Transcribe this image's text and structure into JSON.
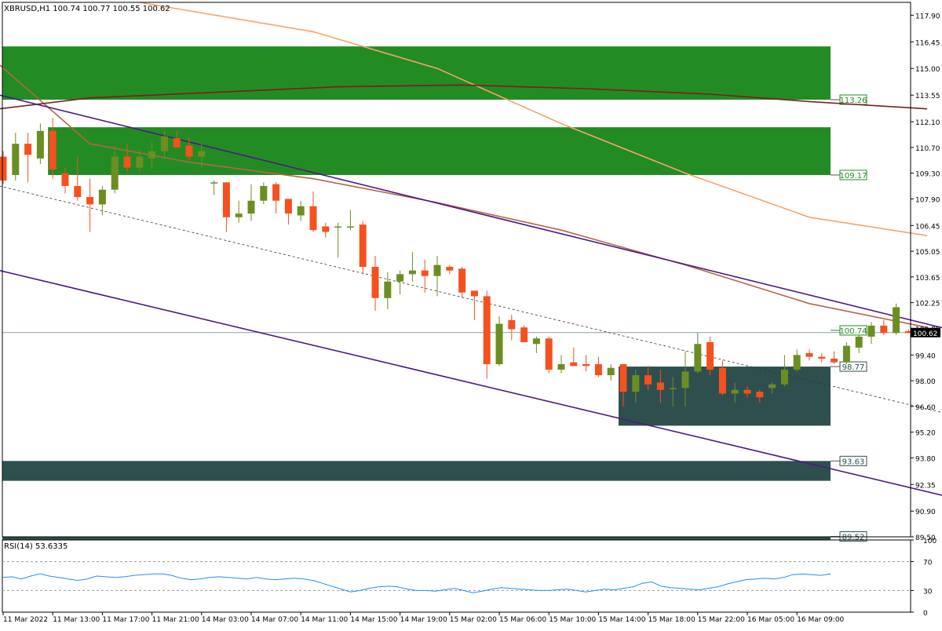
{
  "header": {
    "symbol_info": "XBRUSD,H1  100.74 100.77 100.55 100.62"
  },
  "rsi_header": {
    "label": "RSI(14) 53.6335"
  },
  "colors": {
    "bull": "#6b8e23",
    "bear": "#f4511e",
    "zone_green": "#238b23",
    "zone_dark": "#2f4f4f",
    "ma_fast": "#b5654a",
    "ma_mid": "#f4a46c",
    "ma_slow": "#7a1f1f",
    "channel": "#4b1b82",
    "rsi": "#1e90ff"
  },
  "chart_data": [
    {
      "type": "candlestick",
      "title": "XBRUSD,H1",
      "ylim": [
        89.5,
        118.6
      ],
      "y_ticks": [
        "117.90",
        "116.45",
        "115.00",
        "113.55",
        "112.10",
        "110.70",
        "109.30",
        "107.90",
        "106.45",
        "105.05",
        "103.65",
        "102.25",
        "100.85",
        "99.40",
        "98.00",
        "96.60",
        "95.20",
        "93.80",
        "92.35",
        "90.90",
        "89.50"
      ],
      "x_ticks": [
        "11 Mar 2022",
        "11 Mar 13:00",
        "11 Mar 17:00",
        "11 Mar 21:00",
        "14 Mar 03:00",
        "14 Mar 07:00",
        "14 Mar 11:00",
        "14 Mar 15:00",
        "14 Mar 19:00",
        "15 Mar 02:00",
        "15 Mar 06:00",
        "15 Mar 10:00",
        "15 Mar 14:00",
        "15 Mar 18:00",
        "15 Mar 22:00",
        "16 Mar 05:00",
        "16 Mar 09:00"
      ],
      "current_price": "100.62",
      "candles": [
        [
          110.2,
          110.5,
          108.7,
          108.9
        ],
        [
          109.2,
          111.5,
          108.9,
          110.9
        ],
        [
          110.9,
          111.5,
          108.8,
          110.3
        ],
        [
          110.1,
          112.0,
          109.8,
          111.6
        ],
        [
          111.6,
          112.3,
          109.0,
          109.5
        ],
        [
          109.3,
          109.6,
          108.2,
          108.6
        ],
        [
          108.6,
          110.2,
          107.8,
          108.0
        ],
        [
          108.0,
          109.0,
          106.1,
          107.6
        ],
        [
          107.6,
          108.6,
          107.0,
          108.4
        ],
        [
          108.4,
          110.8,
          108.2,
          110.2
        ],
        [
          110.2,
          110.9,
          109.4,
          109.6
        ],
        [
          109.6,
          110.6,
          109.3,
          110.2
        ],
        [
          110.1,
          111.0,
          109.5,
          110.5
        ],
        [
          110.5,
          111.6,
          110.1,
          111.3
        ],
        [
          111.2,
          111.6,
          110.7,
          110.7
        ],
        [
          110.8,
          111.2,
          110.0,
          110.2
        ],
        [
          110.2,
          110.9,
          109.6,
          110.5
        ],
        [
          108.8,
          108.9,
          108.1,
          108.8
        ],
        [
          108.8,
          108.8,
          106.1,
          106.9
        ],
        [
          106.9,
          107.8,
          106.6,
          107.1
        ],
        [
          107.1,
          108.7,
          106.7,
          107.8
        ],
        [
          107.8,
          108.8,
          107.6,
          108.6
        ],
        [
          108.7,
          108.8,
          107.1,
          107.8
        ],
        [
          107.9,
          107.9,
          106.5,
          107.1
        ],
        [
          107.0,
          107.8,
          106.7,
          107.5
        ],
        [
          107.5,
          108.3,
          106.1,
          106.2
        ],
        [
          106.4,
          106.6,
          105.8,
          106.1
        ],
        [
          106.4,
          106.6,
          104.7,
          106.4
        ],
        [
          106.4,
          107.3,
          106.2,
          106.4
        ],
        [
          106.5,
          106.7,
          103.8,
          104.2
        ],
        [
          104.2,
          104.8,
          101.8,
          102.5
        ],
        [
          102.5,
          103.9,
          101.9,
          103.4
        ],
        [
          103.4,
          104.0,
          102.7,
          103.8
        ],
        [
          103.8,
          105.0,
          103.4,
          104.0
        ],
        [
          104.0,
          104.6,
          102.8,
          103.7
        ],
        [
          103.7,
          104.8,
          102.6,
          104.3
        ],
        [
          104.2,
          104.3,
          103.8,
          104.0
        ],
        [
          104.1,
          104.2,
          102.5,
          102.8
        ],
        [
          102.9,
          102.8,
          101.3,
          102.6
        ],
        [
          102.6,
          102.9,
          98.1,
          98.9
        ],
        [
          98.9,
          101.5,
          98.8,
          101.1
        ],
        [
          101.3,
          101.6,
          100.2,
          100.8
        ],
        [
          100.9,
          101.0,
          100.1,
          100.1
        ],
        [
          100.0,
          100.4,
          99.5,
          100.3
        ],
        [
          100.3,
          100.4,
          98.4,
          98.6
        ],
        [
          98.6,
          99.4,
          98.4,
          98.9
        ],
        [
          99.0,
          99.8,
          98.8,
          98.8
        ],
        [
          98.9,
          99.4,
          98.5,
          98.8
        ],
        [
          98.9,
          99.3,
          98.2,
          98.3
        ],
        [
          98.3,
          98.9,
          98.0,
          98.7
        ],
        [
          98.9,
          98.9,
          96.6,
          97.4
        ],
        [
          97.4,
          98.6,
          96.8,
          98.3
        ],
        [
          98.3,
          98.8,
          97.5,
          97.8
        ],
        [
          97.9,
          98.6,
          96.8,
          97.5
        ],
        [
          97.6,
          98.2,
          96.6,
          97.6
        ],
        [
          97.6,
          99.6,
          96.6,
          98.5
        ],
        [
          98.5,
          100.6,
          98.4,
          100.0
        ],
        [
          100.1,
          100.4,
          98.3,
          98.6
        ],
        [
          98.7,
          99.1,
          97.2,
          97.3
        ],
        [
          97.3,
          97.9,
          96.8,
          97.5
        ],
        [
          97.5,
          97.7,
          97.1,
          97.3
        ],
        [
          97.4,
          97.5,
          96.8,
          97.1
        ],
        [
          97.6,
          97.9,
          97.3,
          97.8
        ],
        [
          97.8,
          99.4,
          97.7,
          98.6
        ],
        [
          98.6,
          99.7,
          98.5,
          99.4
        ],
        [
          99.5,
          99.7,
          99.1,
          99.3
        ],
        [
          99.3,
          99.5,
          99.0,
          99.2
        ],
        [
          99.2,
          99.6,
          98.9,
          99.0
        ],
        [
          99.0,
          100.1,
          98.9,
          99.9
        ],
        [
          99.8,
          100.6,
          99.5,
          100.4
        ],
        [
          100.4,
          101.2,
          100.0,
          101.0
        ],
        [
          101.0,
          101.3,
          100.5,
          100.6
        ],
        [
          100.6,
          102.2,
          100.5,
          102.0
        ],
        [
          100.7,
          100.8,
          100.6,
          100.6
        ]
      ],
      "zones": [
        {
          "name": "zone-upper-green",
          "top": 116.2,
          "bottom": 113.3,
          "color": "zone_green",
          "start": 0,
          "label": "113.26"
        },
        {
          "name": "zone-mid-green",
          "top": 111.8,
          "bottom": 109.2,
          "color": "zone_green",
          "start": 4,
          "label": "109.17"
        },
        {
          "name": "zone-demand-dark",
          "top": 98.77,
          "bottom": 95.55,
          "color": "zone_dark",
          "start": 50,
          "label": "98.77"
        },
        {
          "name": "zone-lower-dark",
          "top": 93.63,
          "bottom": 92.55,
          "color": "zone_dark",
          "start": 0,
          "label": "93.63"
        },
        {
          "name": "zone-bottom-dark",
          "top": 89.52,
          "bottom": 89.35,
          "color": "zone_dark",
          "start": 0,
          "label": "89.52"
        }
      ],
      "price_labels": [
        {
          "value": 100.74,
          "label": "100.74",
          "style": "green"
        }
      ],
      "moving_averages": [
        {
          "name": "ma-fast",
          "color": "ma_fast",
          "points": [
            [
              -0.3,
              115.2
            ],
            [
              7,
              110.9
            ],
            [
              15,
              109.9
            ],
            [
              25,
              109.0
            ],
            [
              35,
              107.7
            ],
            [
              45,
              106.2
            ],
            [
              55,
              104.3
            ],
            [
              65,
              102.2
            ],
            [
              74.5,
              100.9
            ]
          ]
        },
        {
          "name": "ma-mid",
          "color": "ma_mid",
          "points": [
            [
              11,
              118.6
            ],
            [
              25,
              117.0
            ],
            [
              35,
              115.0
            ],
            [
              45,
              112.0
            ],
            [
              55,
              109.3
            ],
            [
              65,
              106.9
            ],
            [
              74.5,
              105.9
            ]
          ]
        },
        {
          "name": "ma-slow",
          "color": "ma_slow",
          "points": [
            [
              -0.3,
              112.8
            ],
            [
              7,
              113.4
            ],
            [
              17,
              113.7
            ],
            [
              27,
              114.0
            ],
            [
              37,
              114.1
            ],
            [
              47,
              113.9
            ],
            [
              57,
              113.6
            ],
            [
              65,
              113.2
            ],
            [
              74.5,
              112.8
            ]
          ]
        }
      ],
      "channel_lines": [
        {
          "name": "channel-upper",
          "dashed": false,
          "from": [
            -0.3,
            113.55
          ],
          "to": [
            79.2,
            100.3
          ]
        },
        {
          "name": "channel-lower",
          "dashed": false,
          "from": [
            -0.3,
            104.0
          ],
          "to": [
            79.2,
            91.2
          ]
        },
        {
          "name": "channel-mid-dashed",
          "dashed": true,
          "from": [
            -0.3,
            108.6
          ],
          "to": [
            79.2,
            95.7
          ]
        }
      ]
    },
    {
      "type": "line",
      "title": "RSI(14) 53.6335",
      "ylim": [
        0,
        100
      ],
      "y_ticks": [
        "100",
        "70",
        "30",
        "0"
      ],
      "levels": [
        70,
        30
      ],
      "values": [
        48,
        49,
        46,
        50,
        53,
        50,
        48,
        46,
        44,
        46,
        50,
        49,
        48,
        49,
        51,
        52,
        53,
        53,
        51,
        47,
        45,
        46,
        48,
        49,
        48,
        47,
        46,
        48,
        46,
        45,
        46,
        47,
        46,
        44,
        40,
        36,
        32,
        28,
        30,
        33,
        35,
        36,
        35,
        32,
        30,
        30,
        29,
        31,
        33,
        30,
        27,
        29,
        32,
        34,
        33,
        32,
        31,
        30,
        30,
        31,
        32,
        30,
        28,
        30,
        32,
        31,
        33,
        35,
        40,
        42,
        36,
        34,
        33,
        32,
        31,
        33,
        35,
        39,
        42,
        45,
        46,
        47,
        46,
        48,
        52,
        53,
        52,
        51,
        53
      ]
    }
  ]
}
